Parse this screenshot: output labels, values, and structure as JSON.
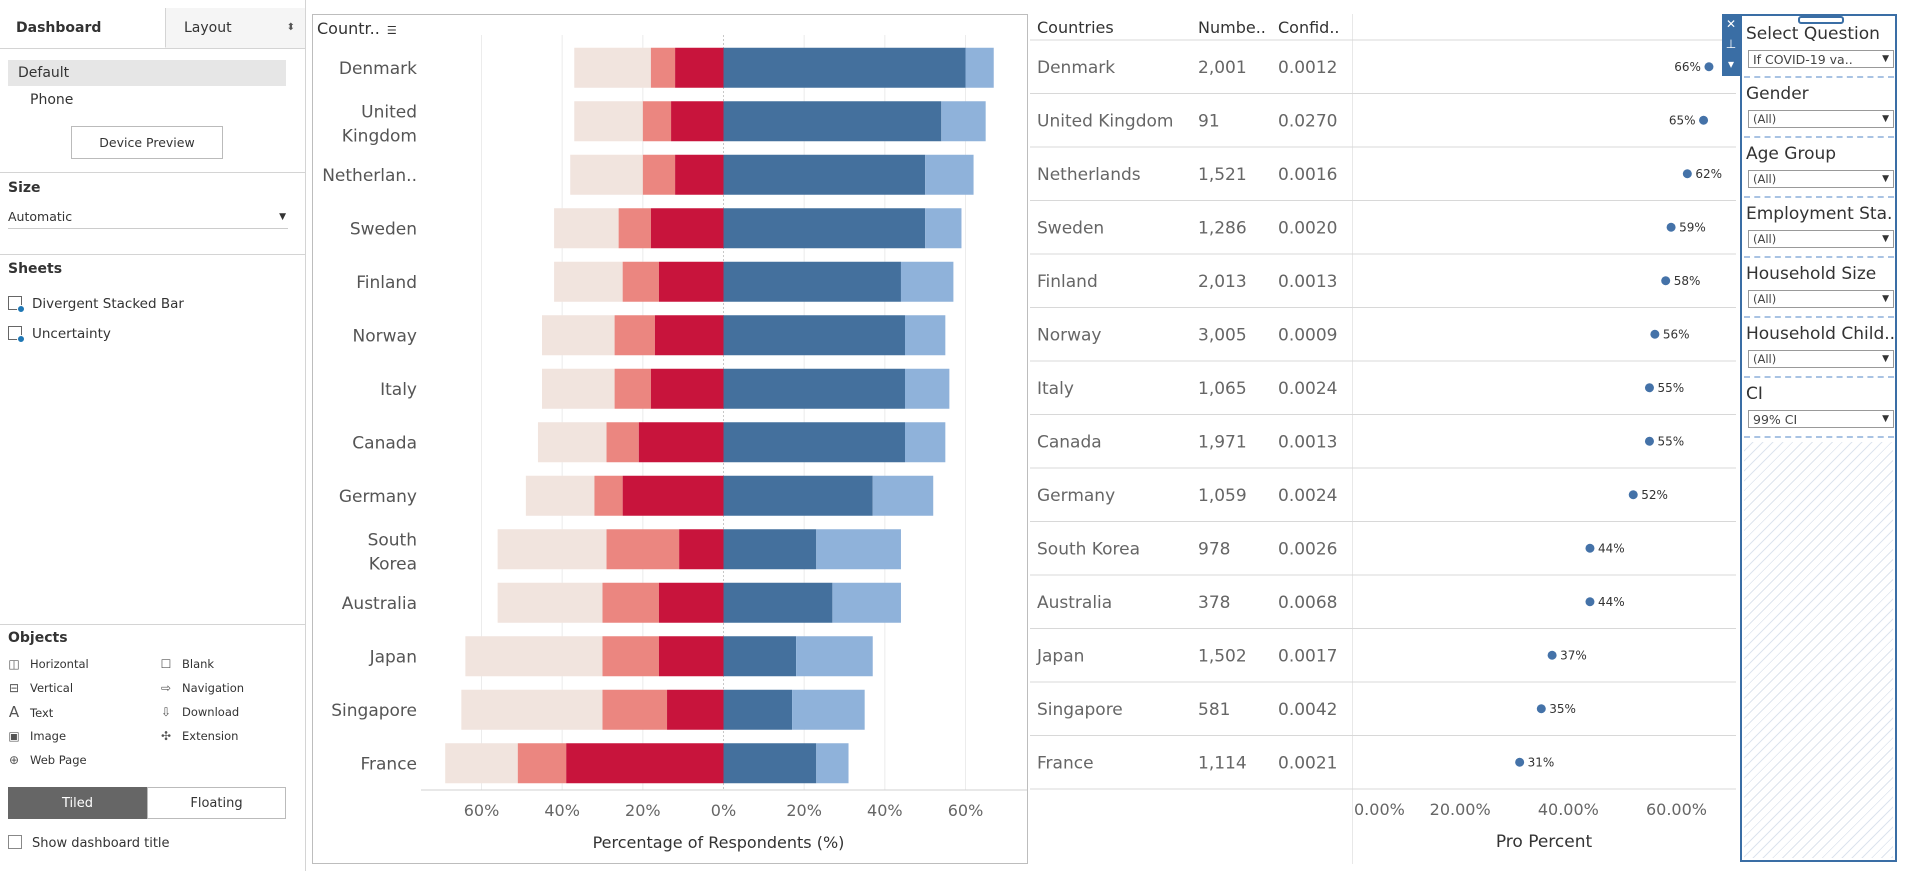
{
  "left_panel": {
    "tabs": [
      {
        "label": "Dashboard"
      },
      {
        "label": "Layout"
      }
    ],
    "device": {
      "items": [
        "Default",
        "Phone"
      ],
      "preview_button": "Device Preview"
    },
    "size": {
      "title": "Size",
      "value": "Automatic"
    },
    "sheets": {
      "title": "Sheets",
      "items": [
        "Divergent Stacked Bar",
        "Uncertainty"
      ]
    },
    "objects": {
      "title": "Objects",
      "items": [
        {
          "label": "Horizontal",
          "icon": "horizontal-container-icon"
        },
        {
          "label": "Blank",
          "icon": "blank-icon"
        },
        {
          "label": "Vertical",
          "icon": "vertical-container-icon"
        },
        {
          "label": "Navigation",
          "icon": "navigation-icon"
        },
        {
          "label": "Text",
          "icon": "text-icon"
        },
        {
          "label": "Download",
          "icon": "download-icon"
        },
        {
          "label": "Image",
          "icon": "image-icon"
        },
        {
          "label": "Extension",
          "icon": "extension-icon"
        },
        {
          "label": "Web Page",
          "icon": "web-page-icon"
        }
      ]
    },
    "layout_mode": {
      "tiled": "Tiled",
      "floating": "Floating",
      "selected": "Tiled"
    },
    "show_title": {
      "label": "Show dashboard title",
      "checked": false
    }
  },
  "table_headers": {
    "country_col": "Countr..",
    "countries": "Countries",
    "number": "Numbe..",
    "confidence": "Confid.."
  },
  "colors": {
    "neg_light": "#f1e4de",
    "neg_mid": "#eb8680",
    "neg_dark": "#c8143c",
    "pos_dark": "#44709d",
    "pos_light": "#8fb2da",
    "dot": "#4472a8"
  },
  "chart_data": [
    {
      "type": "bar",
      "stacked": "diverging",
      "categories": [
        "Denmark",
        "United Kingdom",
        "Netherlan..",
        "Sweden",
        "Finland",
        "Norway",
        "Italy",
        "Canada",
        "Germany",
        "South Korea",
        "Australia",
        "Japan",
        "Singapore",
        "France"
      ],
      "series": [
        {
          "values": [
            -19,
            -17,
            -18,
            -16,
            -17,
            -18,
            -18,
            -17,
            -17,
            -27,
            -26,
            -34,
            -35,
            -18
          ]
        },
        {
          "values": [
            -6,
            -7,
            -8,
            -8,
            -9,
            -10,
            -9,
            -8,
            -7,
            -18,
            -14,
            -14,
            -16,
            -12
          ]
        },
        {
          "values": [
            -12,
            -13,
            -12,
            -18,
            -16,
            -17,
            -18,
            -21,
            -25,
            -11,
            -16,
            -16,
            -14,
            -39
          ]
        },
        {
          "values": [
            60,
            54,
            50,
            50,
            44,
            45,
            45,
            45,
            37,
            23,
            27,
            18,
            17,
            23
          ]
        },
        {
          "values": [
            7,
            11,
            12,
            9,
            13,
            10,
            11,
            10,
            15,
            21,
            17,
            19,
            18,
            8
          ]
        }
      ],
      "xlabel": "Percentage of Respondents (%)",
      "xlim": [
        -75,
        75
      ],
      "xticks": [
        "60%",
        "40%",
        "20%",
        "0%",
        "20%",
        "40%",
        "60%"
      ],
      "xtick_values": [
        -60,
        -40,
        -20,
        0,
        20,
        40,
        60
      ],
      "grid": true
    },
    {
      "type": "table",
      "columns": [
        "Countries",
        "Numbe..",
        "Confid.."
      ],
      "rows": [
        [
          "Denmark",
          "2,001",
          "0.0012"
        ],
        [
          "United Kingdom",
          "91",
          "0.0270"
        ],
        [
          "Netherlands",
          "1,521",
          "0.0016"
        ],
        [
          "Sweden",
          "1,286",
          "0.0020"
        ],
        [
          "Finland",
          "2,013",
          "0.0013"
        ],
        [
          "Norway",
          "3,005",
          "0.0009"
        ],
        [
          "Italy",
          "1,065",
          "0.0024"
        ],
        [
          "Canada",
          "1,971",
          "0.0013"
        ],
        [
          "Germany",
          "1,059",
          "0.0024"
        ],
        [
          "South Korea",
          "978",
          "0.0026"
        ],
        [
          "Australia",
          "378",
          "0.0068"
        ],
        [
          "Japan",
          "1,502",
          "0.0017"
        ],
        [
          "Singapore",
          "581",
          "0.0042"
        ],
        [
          "France",
          "1,114",
          "0.0021"
        ]
      ]
    },
    {
      "type": "scatter",
      "x": [
        66,
        65,
        62,
        59,
        58,
        56,
        55,
        55,
        52,
        44,
        44,
        37,
        35,
        31
      ],
      "labels": [
        "66%",
        "65%",
        "62%",
        "59%",
        "58%",
        "56%",
        "55%",
        "55%",
        "52%",
        "44%",
        "44%",
        "37%",
        "35%",
        "31%"
      ],
      "xlabel": "Pro Percent",
      "xlim": [
        0,
        71
      ],
      "xticks": [
        "0.00%",
        "20.00%",
        "40.00%",
        "60.00%"
      ],
      "xtick_values": [
        0,
        20,
        40,
        60
      ]
    }
  ],
  "filters": [
    {
      "title": "Select Question",
      "value": "If COVID-19 va.."
    },
    {
      "title": "Gender",
      "value": "(All)"
    },
    {
      "title": "Age Group",
      "value": "(All)"
    },
    {
      "title": "Employment Sta..",
      "value": "(All)"
    },
    {
      "title": "Household Size",
      "value": "(All)"
    },
    {
      "title": "Household Child..",
      "value": "(All)"
    },
    {
      "title": "CI",
      "value": "99% CI"
    }
  ]
}
